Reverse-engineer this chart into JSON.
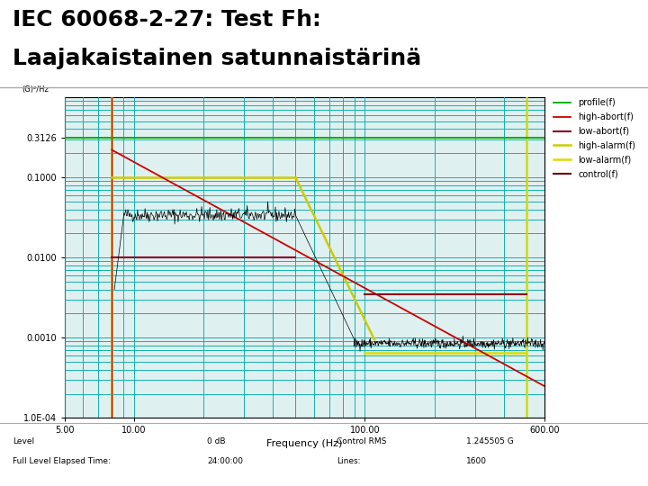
{
  "title_line1": "IEC 60068-2-27: Test Fh:",
  "title_line2": "Laajakaistainen satunnaistärinä",
  "xlabel": "Frequency (Hz)",
  "ylabel": "(G)²/Hz",
  "xlim": [
    5.0,
    600.0
  ],
  "ylim": [
    0.0001,
    1.0
  ],
  "bg_color": "#ffffff",
  "plot_bg_color": "#dff0f0",
  "grid_color": "#00aaaa",
  "profile_color": "#00aa00",
  "high_abort_color": "#cc0000",
  "low_abort_color": "#880022",
  "high_alarm_color": "#cccc00",
  "low_alarm_color": "#dddd00",
  "control_color": "#660000",
  "signal_color": "#000000",
  "profile_label": "profile(f)",
  "high_abort_label": "high-abort(f)",
  "low_abort_label": "low-abort(f)",
  "high_alarm_label": "high-alarm(f)",
  "low_alarm_label": "low-alarm(f)",
  "control_label": "control(f)",
  "footer_left1": "Level",
  "footer_left2": "Full Level Elapsed Time:",
  "footer_mid1": "0 dB",
  "footer_mid2": "24:00:00",
  "footer_right1": "Control RMS",
  "footer_right2": "Lines:",
  "footer_val1": "1.245505 G",
  "footer_val2": "1600",
  "title_fontsize": 18,
  "axis_fontsize": 7,
  "legend_fontsize": 7
}
